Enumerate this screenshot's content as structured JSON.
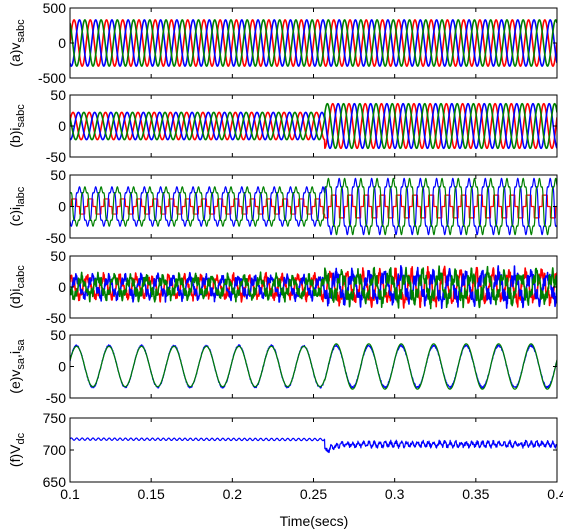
{
  "chart_data": {
    "type": "line",
    "x_label": "Time(secs)",
    "x_range": [
      0.1,
      0.4
    ],
    "x_ticks": [
      "0.1",
      "0.15",
      "0.2",
      "0.25",
      "0.3",
      "0.35",
      "0.4"
    ],
    "panels": [
      {
        "id": "vsabc",
        "label_prefix": "(a)v",
        "label_sub": "sabc",
        "y_range": [
          -500,
          500
        ],
        "y_ticks": [
          "500",
          "0",
          "-500"
        ],
        "y_tick_values": [
          500,
          0,
          -500
        ],
        "series": [
          {
            "phase": "a",
            "color": "#ff0000",
            "amplitude": 330,
            "frequency_hz": 100,
            "phase_deg": 0
          },
          {
            "phase": "b",
            "color": "#0000ff",
            "amplitude": 330,
            "frequency_hz": 100,
            "phase_deg": -120
          },
          {
            "phase": "c",
            "color": "#008000",
            "amplitude": 330,
            "frequency_hz": 100,
            "phase_deg": 120
          }
        ]
      },
      {
        "id": "isabc",
        "label_prefix": "(b)i",
        "label_sub": "sabc",
        "y_range": [
          -50,
          50
        ],
        "y_ticks": [
          "50",
          "0",
          "-50"
        ],
        "y_tick_values": [
          50,
          0,
          -50
        ],
        "amplitude_before": 22,
        "amplitude_after": 36,
        "step_time": 0.257,
        "series": [
          {
            "phase": "a",
            "color": "#ff0000",
            "phase_deg": 0
          },
          {
            "phase": "b",
            "color": "#0000ff",
            "phase_deg": -120
          },
          {
            "phase": "c",
            "color": "#008000",
            "phase_deg": 120
          }
        ]
      },
      {
        "id": "ilabc",
        "label_prefix": "(c)i",
        "label_sub": "labc",
        "y_range": [
          -50,
          50
        ],
        "y_ticks": [
          "50",
          "0",
          "-50"
        ],
        "y_tick_values": [
          50,
          0,
          -50
        ],
        "peak_before": 28,
        "peak_after": 40,
        "red_level_before": 12,
        "red_level_after": 18,
        "step_time": 0.257,
        "series": [
          {
            "phase": "a",
            "color": "#ff0000",
            "phase_deg": 0
          },
          {
            "phase": "b",
            "color": "#0000ff",
            "phase_deg": -120
          },
          {
            "phase": "c",
            "color": "#008000",
            "phase_deg": 120
          }
        ]
      },
      {
        "id": "icabc",
        "label_prefix": "(d)i",
        "label_sub": "cabc",
        "y_range": [
          -50,
          50
        ],
        "y_ticks": [
          "50",
          "0",
          "-50"
        ],
        "y_tick_values": [
          50,
          0,
          -50
        ],
        "amplitude_before": 14,
        "amplitude_after": 20,
        "step_time": 0.257,
        "series": [
          {
            "phase": "a",
            "color": "#ff0000",
            "phase_deg": 0
          },
          {
            "phase": "b",
            "color": "#0000ff",
            "phase_deg": -120
          },
          {
            "phase": "c",
            "color": "#008000",
            "phase_deg": 120
          }
        ]
      },
      {
        "id": "vsa_isa",
        "label_prefix": "(e)v",
        "label_sub": "sa",
        "label_mid": ",i",
        "label_sub2": "sa",
        "y_range": [
          -50,
          50
        ],
        "y_ticks": [
          "50",
          "0",
          "-50"
        ],
        "y_tick_values": [
          50,
          0,
          -50
        ],
        "frequency_hz": 50,
        "series": [
          {
            "name": "v_sa (scaled)",
            "color": "#0000ff",
            "amplitude": 33
          },
          {
            "name": "i_sa",
            "color": "#008000",
            "amplitude_before": 32,
            "amplitude_after": 36
          }
        ]
      },
      {
        "id": "vdc",
        "label_prefix": "(f)V",
        "label_sub": "dc",
        "y_range": [
          650,
          750
        ],
        "y_ticks": [
          "750",
          "700",
          "650"
        ],
        "y_tick_values": [
          750,
          700,
          650
        ],
        "series": [
          {
            "name": "V_dc",
            "color": "#0000ff",
            "mean_before": 717,
            "mean_after": 709,
            "dip_time": 0.257,
            "dip_value": 698
          }
        ]
      }
    ]
  }
}
